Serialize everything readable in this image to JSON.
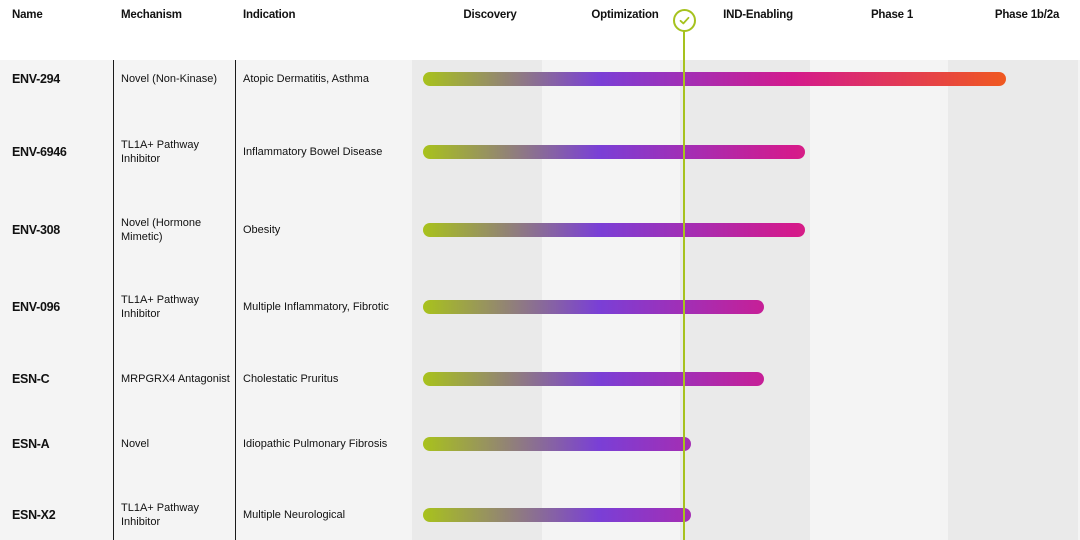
{
  "columns": {
    "name": "Name",
    "mechanism": "Mechanism",
    "indication": "Indication"
  },
  "chart_data": {
    "type": "bar",
    "title": "",
    "orientation": "horizontal",
    "stages": [
      "Discovery",
      "Optimization",
      "IND-Enabling",
      "Phase 1",
      "Phase 1b/2a"
    ],
    "current_marker_stage_position": 2.0,
    "rows": [
      {
        "name": "ENV-294",
        "mechanism": "Novel (Non-Kinase)",
        "indication": "Atopic Dermatitis, Asthma",
        "progress": 4.4
      },
      {
        "name": "ENV-6946",
        "mechanism": "TL1A+ Pathway Inhibitor",
        "indication": "Inflammatory Bowel Disease",
        "progress": 2.9
      },
      {
        "name": "ENV-308",
        "mechanism": "Novel (Hormone Mimetic)",
        "indication": "Obesity",
        "progress": 2.9
      },
      {
        "name": "ENV-096",
        "mechanism": "TL1A+ Pathway Inhibitor",
        "indication": "Multiple Inflammatory, Fibrotic",
        "progress": 2.6
      },
      {
        "name": "ESN-C",
        "mechanism": "MRPGRX4 Antagonist",
        "indication": "Cholestatic Pruritus",
        "progress": 2.6
      },
      {
        "name": "ESN-A",
        "mechanism": "Novel",
        "indication": "Idiopathic Pulmonary Fibrosis",
        "progress": 2.05
      },
      {
        "name": "ESN-X2",
        "mechanism": "TL1A+ Pathway Inhibitor",
        "indication": "Multiple Neurological",
        "progress": 2.05
      }
    ]
  },
  "colors": {
    "gradient": [
      "#a8c21c",
      "#7a3fd6",
      "#d41a8c",
      "#f05a1e"
    ],
    "marker": "#a6c21e"
  },
  "icons": {
    "marker": "check-icon"
  }
}
